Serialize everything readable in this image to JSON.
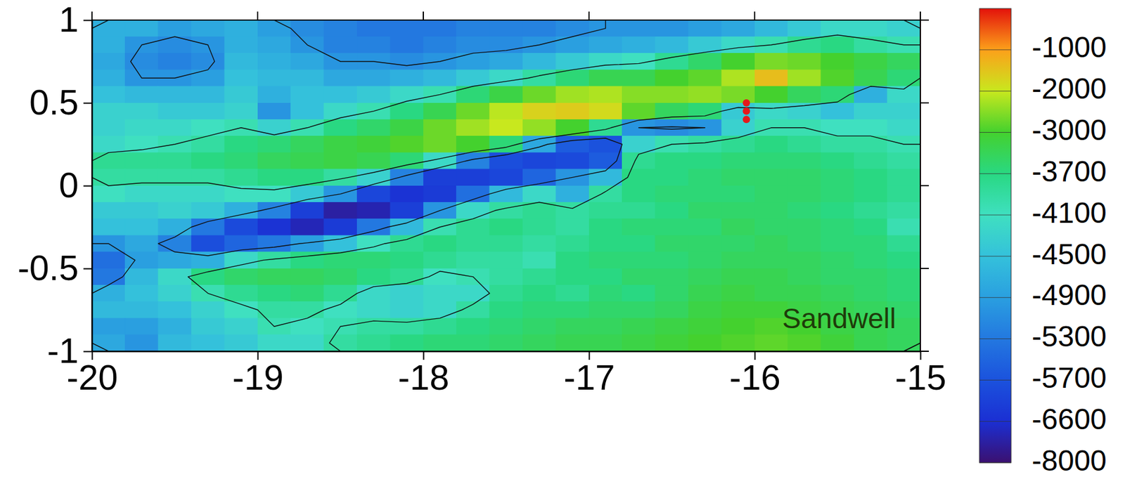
{
  "chart_data": {
    "type": "heatmap",
    "annotation": "Sandwell",
    "x": [
      -19.9,
      -19.7,
      -19.5,
      -19.3,
      -19.1,
      -18.9,
      -18.7,
      -18.5,
      -18.3,
      -18.1,
      -17.9,
      -17.7,
      -17.5,
      -17.3,
      -17.1,
      -16.9,
      -16.7,
      -16.5,
      -16.3,
      -16.1,
      -15.9,
      -15.7,
      -15.5,
      -15.3,
      -15.1
    ],
    "y": [
      0.95,
      0.85,
      0.75,
      0.65,
      0.55,
      0.45,
      0.35,
      0.25,
      0.15,
      0.05,
      -0.05,
      -0.15,
      -0.25,
      -0.35,
      -0.45,
      -0.55,
      -0.65,
      -0.75,
      -0.85,
      -0.95
    ],
    "z": [
      [
        -4700,
        -4700,
        -4900,
        -4800,
        -4700,
        -4900,
        -5100,
        -5200,
        -5300,
        -5300,
        -5300,
        -5200,
        -5200,
        -5200,
        -5100,
        -5000,
        -5000,
        -5000,
        -4900,
        -4800,
        -4600,
        -4400,
        -4200,
        -4200,
        -4300
      ],
      [
        -4700,
        -5000,
        -5100,
        -5000,
        -4700,
        -4800,
        -5000,
        -5200,
        -5200,
        -5300,
        -5200,
        -5100,
        -5100,
        -5000,
        -4900,
        -4800,
        -4700,
        -4600,
        -4400,
        -4200,
        -4000,
        -3800,
        -3700,
        -3900,
        -4000
      ],
      [
        -4800,
        -5100,
        -5200,
        -5100,
        -4600,
        -4700,
        -4800,
        -5000,
        -5000,
        -5100,
        -5000,
        -4900,
        -4800,
        -4600,
        -4400,
        -4200,
        -4100,
        -3800,
        -3500,
        -3000,
        -2600,
        -2700,
        -3000,
        -3200,
        -3400
      ],
      [
        -4700,
        -5000,
        -5000,
        -4900,
        -4500,
        -4600,
        -4600,
        -4800,
        -4800,
        -4700,
        -4600,
        -4400,
        -4200,
        -3900,
        -3600,
        -3300,
        -3300,
        -3000,
        -2800,
        -2200,
        -1400,
        -2300,
        -2900,
        -3300,
        -3600
      ],
      [
        -4500,
        -4600,
        -4600,
        -4600,
        -4400,
        -4700,
        -4500,
        -4500,
        -4400,
        -4200,
        -4000,
        -3600,
        -3200,
        -2700,
        -2300,
        -2200,
        -2500,
        -2500,
        -2400,
        -2600,
        -3000,
        -3400,
        -3600,
        -4700,
        -4200
      ],
      [
        -4300,
        -4300,
        -4400,
        -4400,
        -4300,
        -5000,
        -4500,
        -4200,
        -4000,
        -3700,
        -3300,
        -2700,
        -2100,
        -1700,
        -1600,
        -1800,
        -2800,
        -3400,
        -3600,
        -4400,
        -4200,
        -4300,
        -4500,
        -4300,
        -4300
      ],
      [
        -4300,
        -4200,
        -4200,
        -4100,
        -4000,
        -4300,
        -4000,
        -3700,
        -3500,
        -3200,
        -2700,
        -2300,
        -2000,
        -2400,
        -3000,
        -3800,
        -5000,
        -5100,
        -5000,
        -4300,
        -4000,
        -4000,
        -4100,
        -4100,
        -4200
      ],
      [
        -4200,
        -4100,
        -4000,
        -3900,
        -3700,
        -3600,
        -3400,
        -3200,
        -3100,
        -2900,
        -2700,
        -3000,
        -3600,
        -4800,
        -5600,
        -5700,
        -4300,
        -4000,
        -3900,
        -3800,
        -3700,
        -3800,
        -3900,
        -3900,
        -4000
      ],
      [
        -3800,
        -3800,
        -3800,
        -3700,
        -3600,
        -3400,
        -3300,
        -3200,
        -3300,
        -3600,
        -4200,
        -5200,
        -5800,
        -6000,
        -5900,
        -5600,
        -3800,
        -3700,
        -3700,
        -3600,
        -3600,
        -3600,
        -3700,
        -3800,
        -3900
      ],
      [
        -3900,
        -3900,
        -3900,
        -3900,
        -3800,
        -3700,
        -3700,
        -3900,
        -4300,
        -5200,
        -6200,
        -6200,
        -6000,
        -5500,
        -5000,
        -4600,
        -3700,
        -3700,
        -3600,
        -3500,
        -3500,
        -3500,
        -3600,
        -3700,
        -3800
      ],
      [
        -4100,
        -4200,
        -4200,
        -4200,
        -4100,
        -4100,
        -4400,
        -5000,
        -6000,
        -6500,
        -6300,
        -5400,
        -4600,
        -4200,
        -4700,
        -3900,
        -3700,
        -3600,
        -3600,
        -3600,
        -3500,
        -3500,
        -3600,
        -3700,
        -3800
      ],
      [
        -4400,
        -4400,
        -4300,
        -4400,
        -4700,
        -5200,
        -6200,
        -7300,
        -7100,
        -6200,
        -5000,
        -4200,
        -3900,
        -3800,
        -3900,
        -3800,
        -3800,
        -3700,
        -3500,
        -3500,
        -3500,
        -3600,
        -3700,
        -3800,
        -3900
      ],
      [
        -4500,
        -4500,
        -4700,
        -5300,
        -5900,
        -6500,
        -7000,
        -6300,
        -5300,
        -4600,
        -4000,
        -3800,
        -3700,
        -3800,
        -3900,
        -3700,
        -3600,
        -3600,
        -3600,
        -3400,
        -3500,
        -3500,
        -3600,
        -3700,
        -4000
      ],
      [
        -5000,
        -4800,
        -5200,
        -5800,
        -5500,
        -5300,
        -4900,
        -4500,
        -4100,
        -3800,
        -3700,
        -3800,
        -3800,
        -3900,
        -3800,
        -3700,
        -3700,
        -3500,
        -3500,
        -3500,
        -3400,
        -3500,
        -3600,
        -3600,
        -3800
      ],
      [
        -5400,
        -4900,
        -4800,
        -4700,
        -4200,
        -3900,
        -3700,
        -3600,
        -3600,
        -3700,
        -3800,
        -3900,
        -3900,
        -4000,
        -3700,
        -3600,
        -3600,
        -3600,
        -3500,
        -3400,
        -3400,
        -3400,
        -3500,
        -3600,
        -3700
      ],
      [
        -5300,
        -4600,
        -4200,
        -3700,
        -3500,
        -3400,
        -3400,
        -3500,
        -3700,
        -3800,
        -4100,
        -4000,
        -3900,
        -3800,
        -3700,
        -3700,
        -3500,
        -3500,
        -3400,
        -3300,
        -3300,
        -3400,
        -3500,
        -3500,
        -3600
      ],
      [
        -4700,
        -4500,
        -4300,
        -4000,
        -3800,
        -3700,
        -3600,
        -3800,
        -4200,
        -4300,
        -4200,
        -4200,
        -3800,
        -3700,
        -3800,
        -3600,
        -3700,
        -3500,
        -3300,
        -3200,
        -3300,
        -3300,
        -3400,
        -3500,
        -3600
      ],
      [
        -4600,
        -4600,
        -4500,
        -4300,
        -4100,
        -3900,
        -3900,
        -4100,
        -4200,
        -4300,
        -4200,
        -3900,
        -3700,
        -3600,
        -3600,
        -3500,
        -3500,
        -3400,
        -3200,
        -3100,
        -3100,
        -3200,
        -3300,
        -3400,
        -3500
      ],
      [
        -4900,
        -4900,
        -4700,
        -4400,
        -4300,
        -4000,
        -4100,
        -4000,
        -3900,
        -3900,
        -3800,
        -3700,
        -3600,
        -3500,
        -3400,
        -3400,
        -3300,
        -3200,
        -3100,
        -3000,
        -2900,
        -3000,
        -3200,
        -3300,
        -3400
      ],
      [
        -4800,
        -5000,
        -4600,
        -4500,
        -4400,
        -4200,
        -4200,
        -3900,
        -3800,
        -3700,
        -3600,
        -3600,
        -3500,
        -3400,
        -3300,
        -3300,
        -3200,
        -3100,
        -3000,
        -2900,
        -2800,
        -2900,
        -3100,
        -3300,
        -3400
      ]
    ],
    "xlim": [
      -20,
      -15
    ],
    "ylim": [
      -1,
      1
    ],
    "xticks": [
      -20,
      -19,
      -18,
      -17,
      -16,
      -15
    ],
    "yticks": [
      1,
      0.5,
      0,
      -0.5,
      -1
    ],
    "contour_levels": [
      -4000,
      -5000
    ],
    "points": {
      "x": [
        -16.05,
        -16.05,
        -16.05
      ],
      "y": [
        0.5,
        0.45,
        0.4
      ],
      "color": "#e41a1c",
      "marker": "circle"
    },
    "colorbar": {
      "range": [
        -8000,
        0
      ],
      "ticks": [
        -1000,
        -2000,
        -3000,
        -3700,
        -4100,
        -4500,
        -4900,
        -5300,
        -5700,
        -6600,
        -8000
      ],
      "colors": [
        "#e3120b",
        "#fca01a",
        "#c8e81e",
        "#44d12e",
        "#29d882",
        "#3fe0c0",
        "#34c1db",
        "#2a9fe0",
        "#2378e0",
        "#1b52dd",
        "#1b2fd3",
        "#3b1070"
      ]
    }
  }
}
